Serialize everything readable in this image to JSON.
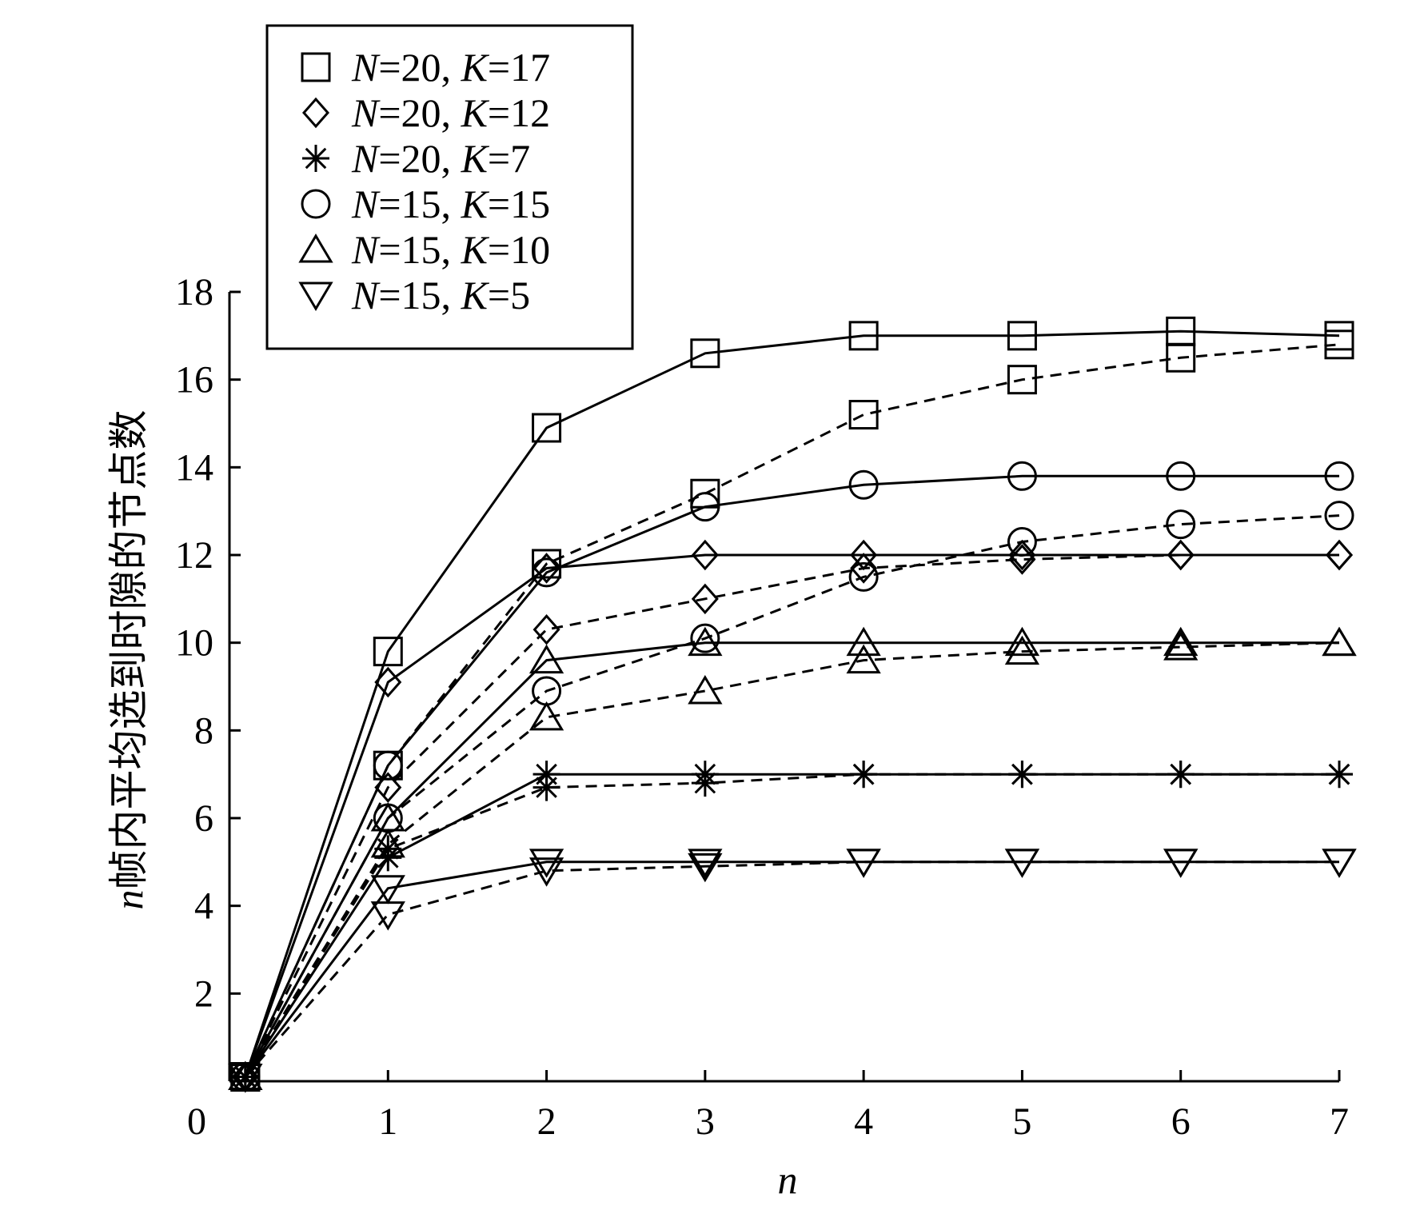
{
  "chart_data": {
    "type": "line",
    "title": "",
    "xlabel": "n",
    "ylabel": {
      "var": "n",
      "text": "帧内平均选到时隙的节点数"
    },
    "x_origin_label": "0",
    "xlim": [
      0,
      7
    ],
    "ylim": [
      0,
      18
    ],
    "x_ticks": [
      1,
      2,
      3,
      4,
      5,
      6,
      7
    ],
    "y_ticks": [
      2,
      4,
      6,
      8,
      10,
      12,
      14,
      16,
      18
    ],
    "grid": false,
    "legend": {
      "position": "top-left",
      "boxed": true
    },
    "line_styles": {
      "solid": "solid",
      "dashed": "dashed"
    },
    "series": [
      {
        "name": {
          "N": "20",
          "K": "17"
        },
        "marker": "square",
        "legend_order": 0,
        "solid": [
          0.1,
          9.8,
          14.9,
          16.6,
          17.0,
          17.0,
          17.1,
          17.0
        ],
        "dashed": [
          0.1,
          7.2,
          11.8,
          13.4,
          15.2,
          16.0,
          16.5,
          16.8
        ]
      },
      {
        "name": {
          "N": "20",
          "K": "12"
        },
        "marker": "diamond",
        "legend_order": 1,
        "solid": [
          0.1,
          9.1,
          11.7,
          12.0,
          12.0,
          12.0,
          12.0,
          12.0
        ],
        "dashed": [
          0.1,
          6.7,
          10.3,
          11.0,
          11.7,
          11.9,
          12.0,
          12.0
        ]
      },
      {
        "name": {
          "N": "20",
          "K": "7"
        },
        "marker": "asterisk",
        "legend_order": 2,
        "solid": [
          0.1,
          5.1,
          7.0,
          7.0,
          7.0,
          7.0,
          7.0,
          7.0
        ],
        "dashed": [
          0.1,
          5.3,
          6.7,
          6.8,
          7.0,
          7.0,
          7.0,
          7.0
        ]
      },
      {
        "name": {
          "N": "15",
          "K": "15"
        },
        "marker": "circle",
        "legend_order": 3,
        "solid": [
          0.1,
          7.2,
          11.6,
          13.1,
          13.6,
          13.8,
          13.8,
          13.8
        ],
        "dashed": [
          0.1,
          6.0,
          8.9,
          10.1,
          11.5,
          12.3,
          12.7,
          12.9
        ]
      },
      {
        "name": {
          "N": "15",
          "K": "10"
        },
        "marker": "triangle-up",
        "legend_order": 4,
        "solid": [
          0.1,
          6.0,
          9.6,
          10.0,
          10.0,
          10.0,
          10.0,
          10.0
        ],
        "dashed": [
          0.1,
          5.4,
          8.3,
          8.9,
          9.6,
          9.8,
          9.9,
          10.0
        ]
      },
      {
        "name": {
          "N": "15",
          "K": "5"
        },
        "marker": "triangle-down",
        "legend_order": 5,
        "solid": [
          0.1,
          4.4,
          5.0,
          5.0,
          5.0,
          5.0,
          5.0,
          5.0
        ],
        "dashed": [
          0.1,
          3.8,
          4.8,
          4.9,
          5.0,
          5.0,
          5.0,
          5.0
        ]
      }
    ],
    "x": [
      0.1,
      1,
      2,
      3,
      4,
      5,
      6,
      7
    ]
  }
}
